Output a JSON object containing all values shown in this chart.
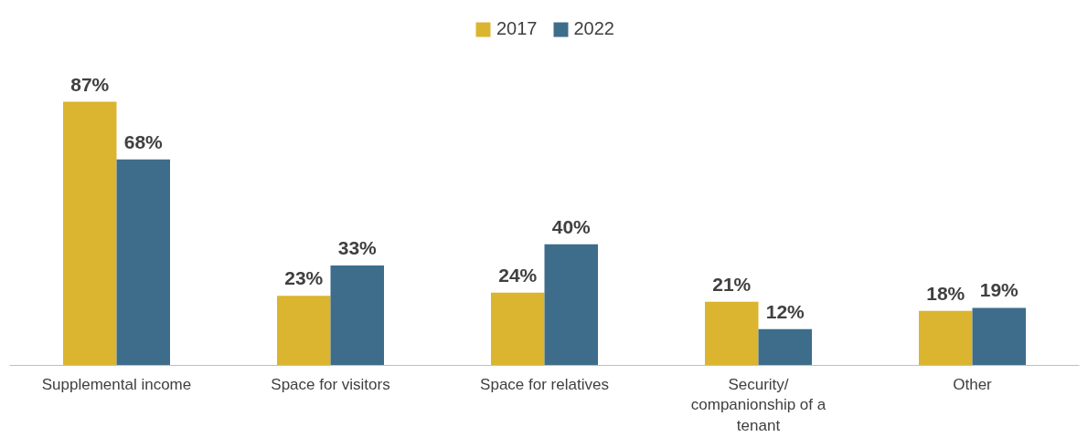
{
  "chart_data": {
    "type": "bar",
    "categories": [
      "Supplemental income",
      "Space for visitors",
      "Space for relatives",
      "Security/ companionship of a tenant",
      "Other"
    ],
    "series": [
      {
        "name": "2017",
        "color": "#dbb52f",
        "values": [
          87,
          23,
          24,
          21,
          18
        ],
        "value_labels": [
          "87%",
          "23%",
          "24%",
          "21%",
          "18%"
        ]
      },
      {
        "name": "2022",
        "color": "#3e6d8b",
        "values": [
          68,
          33,
          40,
          12,
          19
        ],
        "value_labels": [
          "68%",
          "33%",
          "40%",
          "12%",
          "19%"
        ]
      }
    ],
    "legend": "top"
  }
}
